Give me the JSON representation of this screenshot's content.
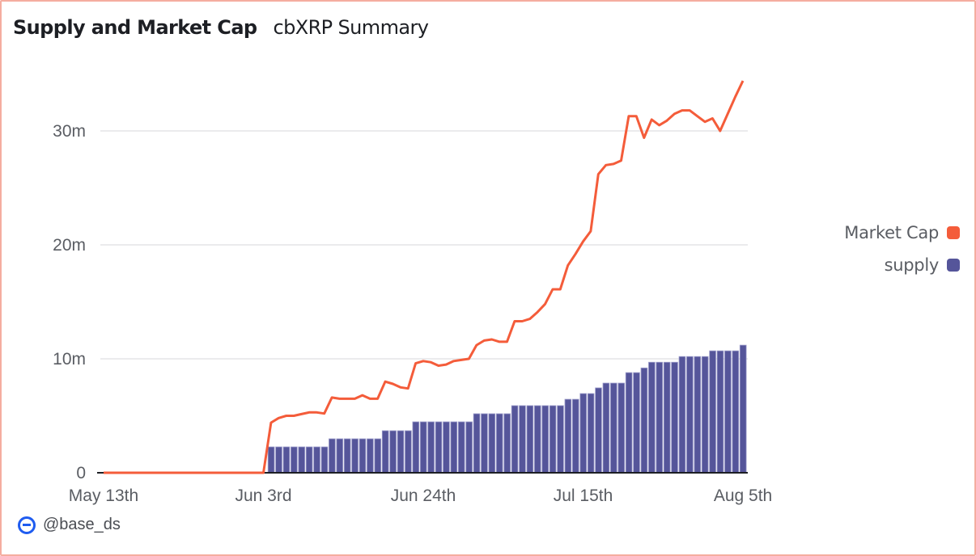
{
  "header": {
    "title": "Supply and Market Cap",
    "subtitle": "cbXRP Summary"
  },
  "footer": {
    "brand_icon": "base-logo-icon",
    "handle": "@base_ds"
  },
  "colors": {
    "market_cap": "#f45c3a",
    "supply": "#55559a",
    "border": "#f5ada0",
    "gridline": "#ebebed",
    "axis_text": "#5a5d63"
  },
  "chart_data": {
    "type": "bar+line",
    "title": "Supply and Market Cap",
    "subtitle": "cbXRP Summary",
    "xlabel": "",
    "ylabel": "",
    "x_start": "May 13th",
    "x_step": "1 day",
    "x_count": 85,
    "x_ticks": [
      {
        "day": 0,
        "label": "May 13th"
      },
      {
        "day": 21,
        "label": "Jun 3rd"
      },
      {
        "day": 42,
        "label": "Jun 24th"
      },
      {
        "day": 63,
        "label": "Jul 15th"
      },
      {
        "day": 84,
        "label": "Aug 5th"
      }
    ],
    "y_ticks": [
      {
        "value": 0,
        "label": "0"
      },
      {
        "value": 10,
        "label": "10m"
      },
      {
        "value": 20,
        "label": "20m"
      },
      {
        "value": 30,
        "label": "30m"
      }
    ],
    "ylim": [
      0,
      34.5
    ],
    "y_unit": "millions",
    "grid": true,
    "legend_position": "right",
    "legend": [
      {
        "name": "Market Cap",
        "color": "#f45c3a"
      },
      {
        "name": "supply",
        "color": "#55559a"
      }
    ],
    "series": [
      {
        "name": "Market Cap",
        "type": "line",
        "start_day": 0,
        "values": [
          0,
          0,
          0,
          0,
          0,
          0,
          0,
          0,
          0,
          0,
          0,
          0,
          0,
          0,
          0,
          0,
          0,
          0,
          0,
          0,
          0,
          0,
          4.4,
          4.8,
          5.0,
          5.0,
          5.15,
          5.3,
          5.3,
          5.2,
          6.6,
          6.5,
          6.5,
          6.5,
          6.8,
          6.5,
          6.5,
          8.0,
          7.8,
          7.5,
          7.4,
          9.6,
          9.8,
          9.7,
          9.4,
          9.5,
          9.8,
          9.9,
          10.0,
          11.2,
          11.6,
          11.7,
          11.5,
          11.5,
          13.3,
          13.3,
          13.5,
          14.1,
          14.8,
          16.1,
          16.1,
          18.2,
          19.2,
          20.3,
          21.2,
          26.2,
          27.0,
          27.1,
          27.4,
          31.3,
          31.3,
          29.4,
          31.0,
          30.5,
          30.9,
          31.5,
          31.8,
          31.8,
          31.3,
          30.8,
          31.1,
          30.0,
          31.5,
          33.0,
          34.4
        ]
      },
      {
        "name": "supply",
        "type": "bar",
        "start_day": 22,
        "values": [
          2.27,
          2.27,
          2.27,
          2.27,
          2.27,
          2.27,
          2.27,
          2.27,
          2.98,
          2.98,
          2.98,
          2.98,
          2.98,
          2.98,
          2.98,
          3.69,
          3.69,
          3.69,
          3.69,
          4.47,
          4.47,
          4.47,
          4.47,
          4.47,
          4.47,
          4.47,
          4.47,
          5.18,
          5.18,
          5.18,
          5.18,
          5.18,
          5.89,
          5.89,
          5.89,
          5.89,
          5.89,
          5.89,
          5.89,
          6.45,
          6.45,
          6.95,
          6.95,
          7.45,
          7.87,
          7.87,
          7.87,
          8.79,
          8.79,
          9.2,
          9.7,
          9.7,
          9.7,
          9.7,
          10.2,
          10.2,
          10.2,
          10.2,
          10.7,
          10.7,
          10.7,
          10.7,
          11.2
        ]
      }
    ]
  }
}
